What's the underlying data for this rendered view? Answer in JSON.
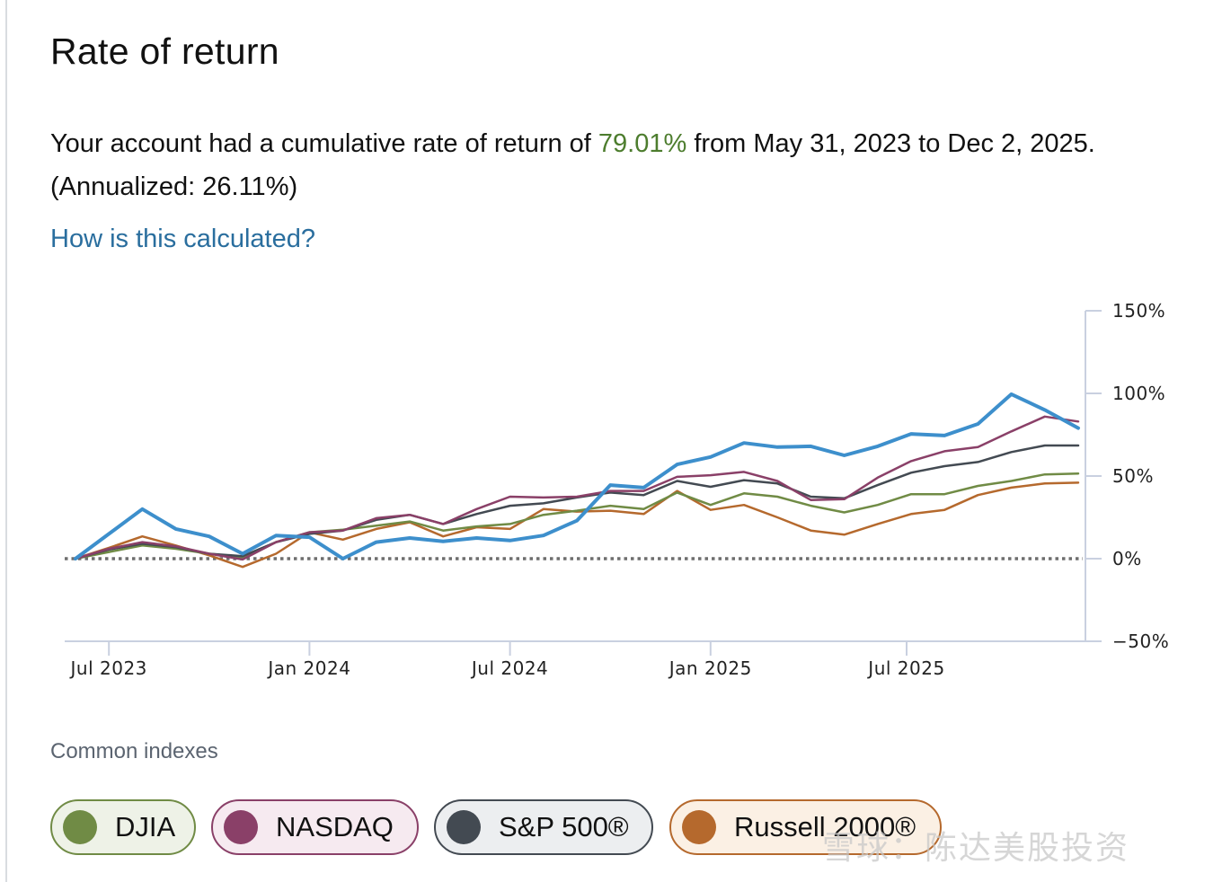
{
  "title": "Rate of return",
  "summary": {
    "prefix": "Your account had a cumulative rate of return of ",
    "rate": "79.01%",
    "suffix": " from May 31, 2023 to Dec 2, 2025. (Annualized: 26.11%)"
  },
  "link": "How is this calculated?",
  "legend": {
    "title": "Common indexes",
    "items": [
      {
        "label": "DJIA",
        "color": "#708b45",
        "bg": "#eef2e7"
      },
      {
        "label": "NASDAQ",
        "color": "#8a4068",
        "bg": "#f6eaf0"
      },
      {
        "label": "S&P 500®",
        "color": "#434a52",
        "bg": "#eceef0"
      },
      {
        "label": "Russell 2000®",
        "color": "#b5692d",
        "bg": "#fbf0e4"
      }
    ]
  },
  "watermark": "雪球：陈达美股投资",
  "chart_data": {
    "type": "line",
    "title": "",
    "xlabel": "",
    "ylabel": "",
    "x_start": "May 31, 2023",
    "x_end": "Dec 2, 2025",
    "x_month_index": [
      0,
      1,
      2,
      3,
      4,
      5,
      6,
      7,
      8,
      9,
      10,
      11,
      12,
      13,
      14,
      15,
      16,
      17,
      18,
      19,
      20,
      21,
      22,
      23,
      24,
      25,
      26,
      27,
      28,
      29,
      30
    ],
    "x_ticks": [
      {
        "label": "Jul 2023",
        "index": 1
      },
      {
        "label": "Jan 2024",
        "index": 7
      },
      {
        "label": "Jul 2024",
        "index": 13
      },
      {
        "label": "Jan 2025",
        "index": 19
      },
      {
        "label": "Jul 2025",
        "index": 25
      }
    ],
    "y_ticks": [
      "150%",
      "100%",
      "50%",
      "0%",
      "−50%"
    ],
    "y_tick_values": [
      150,
      100,
      50,
      0,
      -50
    ],
    "ylim": [
      -50,
      150
    ],
    "reference_line": 0,
    "series": [
      {
        "name": "Your account",
        "color": "#3d8fcc",
        "width": 4,
        "values": [
          0,
          15,
          30,
          18,
          13.5,
          3,
          14,
          13,
          0,
          10,
          12.5,
          10.5,
          12.5,
          11,
          14,
          23,
          44.5,
          43,
          57,
          61.5,
          70,
          67.5,
          68,
          62.5,
          68,
          75.5,
          74.5,
          81.5,
          99.5,
          90,
          79
        ]
      },
      {
        "name": "NASDAQ",
        "color": "#8a4068",
        "width": 2.5,
        "values": [
          0,
          6,
          10,
          7.5,
          3,
          -0.5,
          10,
          16,
          17,
          24.5,
          26.5,
          21,
          30,
          37.5,
          37,
          37.5,
          41,
          41,
          49.5,
          50.5,
          52.5,
          47,
          35.5,
          36,
          49,
          59,
          65,
          67.5,
          77,
          86,
          83
        ]
      },
      {
        "name": "S&P 500®",
        "color": "#434a52",
        "width": 2.5,
        "values": [
          0,
          5.5,
          9,
          7,
          3,
          1.5,
          10,
          15,
          17,
          23.5,
          26.5,
          21,
          27,
          32,
          33.5,
          37,
          40,
          38.5,
          47,
          43.5,
          47.5,
          45.5,
          37.5,
          36.5,
          44.5,
          52,
          56,
          58.5,
          64.5,
          68.5,
          68.5
        ]
      },
      {
        "name": "DJIA",
        "color": "#708b45",
        "width": 2.5,
        "values": [
          0,
          4,
          8,
          6,
          3,
          1,
          10,
          16,
          17.5,
          20,
          22.5,
          17,
          19.5,
          21,
          26.5,
          29,
          32,
          30,
          40,
          32.5,
          39.5,
          37.5,
          32,
          28,
          32.5,
          39,
          39,
          44,
          47,
          51,
          51.5
        ]
      },
      {
        "name": "Russell 2000®",
        "color": "#b5692d",
        "width": 2.5,
        "values": [
          0,
          6.5,
          13.5,
          8,
          2,
          -5,
          3,
          16,
          11.5,
          18,
          22,
          13.5,
          19,
          18,
          30,
          28.5,
          29,
          27,
          41,
          29.5,
          32.5,
          25,
          17,
          14.5,
          21,
          27,
          29.5,
          38.5,
          43,
          45.5,
          46
        ]
      }
    ],
    "grid": false,
    "legend_position": "bottom"
  }
}
